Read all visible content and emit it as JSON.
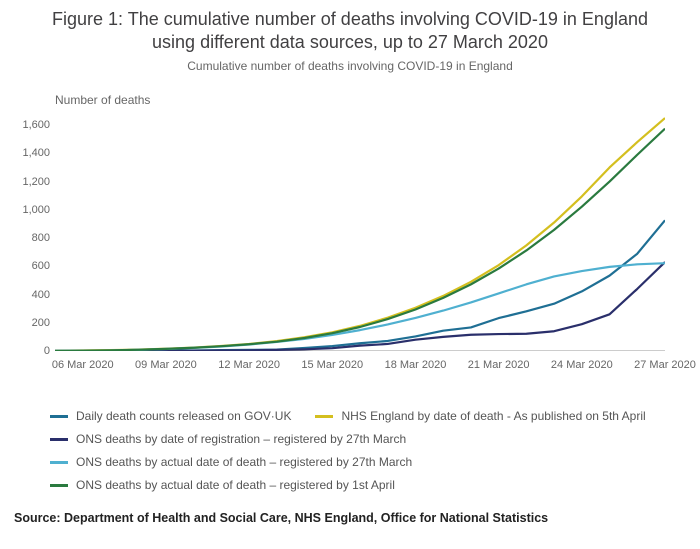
{
  "title": "Figure 1: The cumulative number of deaths involving COVID-19 in England using different data sources, up to 27 March 2020",
  "subtitle": "Cumulative number of deaths involving COVID-19 in England",
  "ylabel": "Number of deaths",
  "source": "Source: Department of Health and Social Care, NHS England, Office for National Statistics",
  "chart": {
    "type": "line",
    "background_color": "#ffffff",
    "axis_color": "#999999",
    "tick_color": "#999999",
    "text_color": "#666666",
    "title_fontsize": 18,
    "subtitle_fontsize": 12,
    "label_fontsize": 12,
    "tick_fontsize": 11,
    "line_width": 2.2,
    "ylim": [
      0,
      1700
    ],
    "yticks": [
      0,
      200,
      400,
      600,
      800,
      1000,
      1200,
      1400,
      1600
    ],
    "ytick_labels": [
      "0",
      "200",
      "400",
      "600",
      "800",
      "1,000",
      "1,200",
      "1,400",
      "1,600"
    ],
    "xlim": [
      0,
      22
    ],
    "xticks": [
      1,
      4,
      7,
      10,
      13,
      16,
      19,
      22
    ],
    "xtick_labels": [
      "06 Mar 2020",
      "09 Mar 2020",
      "12 Mar 2020",
      "15 Mar 2020",
      "18 Mar 2020",
      "21 Mar 2020",
      "24 Mar 2020",
      "27 Mar 2020"
    ],
    "series": [
      {
        "name": "Daily death counts released on GOV·UK",
        "color": "#1f6f94",
        "x": [
          0,
          1,
          2,
          3,
          4,
          5,
          6,
          7,
          8,
          9,
          10,
          11,
          12,
          13,
          14,
          15,
          16,
          17,
          18,
          19,
          20,
          21,
          22
        ],
        "y": [
          1,
          1,
          2,
          2,
          3,
          4,
          6,
          8,
          10,
          21,
          35,
          55,
          71,
          103,
          144,
          167,
          233,
          281,
          335,
          422,
          534,
          689,
          926
        ]
      },
      {
        "name": "NHS England by date of death - As published on 5th April",
        "color": "#d4bf1f",
        "x": [
          0,
          1,
          2,
          3,
          4,
          5,
          6,
          7,
          8,
          9,
          10,
          11,
          12,
          13,
          14,
          15,
          16,
          17,
          18,
          19,
          20,
          21,
          22
        ],
        "y": [
          2,
          4,
          6,
          10,
          16,
          24,
          36,
          50,
          70,
          98,
          132,
          178,
          236,
          306,
          390,
          490,
          608,
          748,
          910,
          1095,
          1300,
          1480,
          1650
        ]
      },
      {
        "name": "ONS deaths by date of registration – registered by 27th March",
        "color": "#2a2f6b",
        "x": [
          0,
          1,
          2,
          3,
          4,
          5,
          6,
          7,
          8,
          9,
          10,
          11,
          12,
          13,
          14,
          15,
          16,
          17,
          18,
          19,
          20,
          21,
          22
        ],
        "y": [
          0,
          0,
          0,
          0,
          1,
          2,
          4,
          5,
          8,
          12,
          20,
          38,
          50,
          80,
          100,
          115,
          120,
          122,
          140,
          190,
          260,
          440,
          630
        ]
      },
      {
        "name": "ONS deaths by actual date of death – registered by 27th March",
        "color": "#4fb0d0",
        "x": [
          0,
          1,
          2,
          3,
          4,
          5,
          6,
          7,
          8,
          9,
          10,
          11,
          12,
          13,
          14,
          15,
          16,
          17,
          18,
          19,
          20,
          21,
          22
        ],
        "y": [
          1,
          2,
          4,
          8,
          14,
          22,
          32,
          46,
          64,
          86,
          114,
          148,
          188,
          234,
          286,
          344,
          408,
          472,
          528,
          566,
          596,
          614,
          622
        ]
      },
      {
        "name": "ONS deaths by actual date of death – registered by 1st April",
        "color": "#2a7a3f",
        "x": [
          0,
          1,
          2,
          3,
          4,
          5,
          6,
          7,
          8,
          9,
          10,
          11,
          12,
          13,
          14,
          15,
          16,
          17,
          18,
          19,
          20,
          21,
          22
        ],
        "y": [
          1,
          3,
          5,
          9,
          15,
          23,
          34,
          48,
          66,
          92,
          126,
          170,
          226,
          294,
          376,
          472,
          584,
          712,
          858,
          1022,
          1200,
          1390,
          1575
        ]
      }
    ]
  },
  "legend_layout": [
    [
      0,
      1
    ],
    [
      2
    ],
    [
      3
    ],
    [
      4
    ]
  ]
}
